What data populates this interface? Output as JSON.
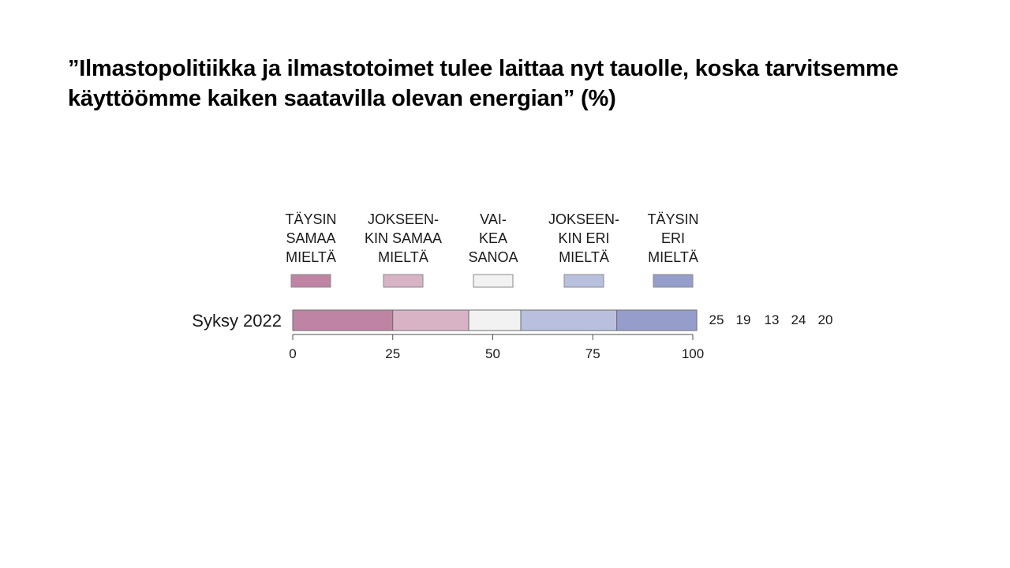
{
  "title_lines": [
    "”Ilmastopolitiikka ja ilmastotoimet tulee laittaa nyt tauolle, koska tarvitsemme",
    "käyttöömme kaiken saatavilla olevan energian” (%)"
  ],
  "chart_data": {
    "type": "bar",
    "orientation": "horizontal",
    "stacked": true,
    "categories": [
      "Syksy 2022"
    ],
    "series": [
      {
        "name": [
          "TÄYSIN",
          "SAMAA",
          "MIELTÄ"
        ],
        "values": [
          25
        ],
        "color": "#bf84a3"
      },
      {
        "name": [
          "JOKSEEN-",
          "KIN SAMAA",
          "MIELTÄ"
        ],
        "values": [
          19
        ],
        "color": "#d8b3c6"
      },
      {
        "name": [
          "VAI-",
          "KEA",
          "SANOA"
        ],
        "values": [
          13
        ],
        "color": "#f2f2f2"
      },
      {
        "name": [
          "JOKSEEN-",
          "KIN ERI",
          "MIELTÄ"
        ],
        "values": [
          24
        ],
        "color": "#b9c0de"
      },
      {
        "name": [
          "TÄYSIN",
          "ERI",
          "MIELTÄ"
        ],
        "values": [
          20
        ],
        "color": "#959dca"
      }
    ],
    "value_labels": [
      "25",
      "19",
      "13",
      "24",
      "20"
    ],
    "xlim": [
      0,
      100
    ],
    "xticks": [
      "0",
      "25",
      "50",
      "75",
      "100"
    ],
    "legend": "top",
    "grid": false
  }
}
